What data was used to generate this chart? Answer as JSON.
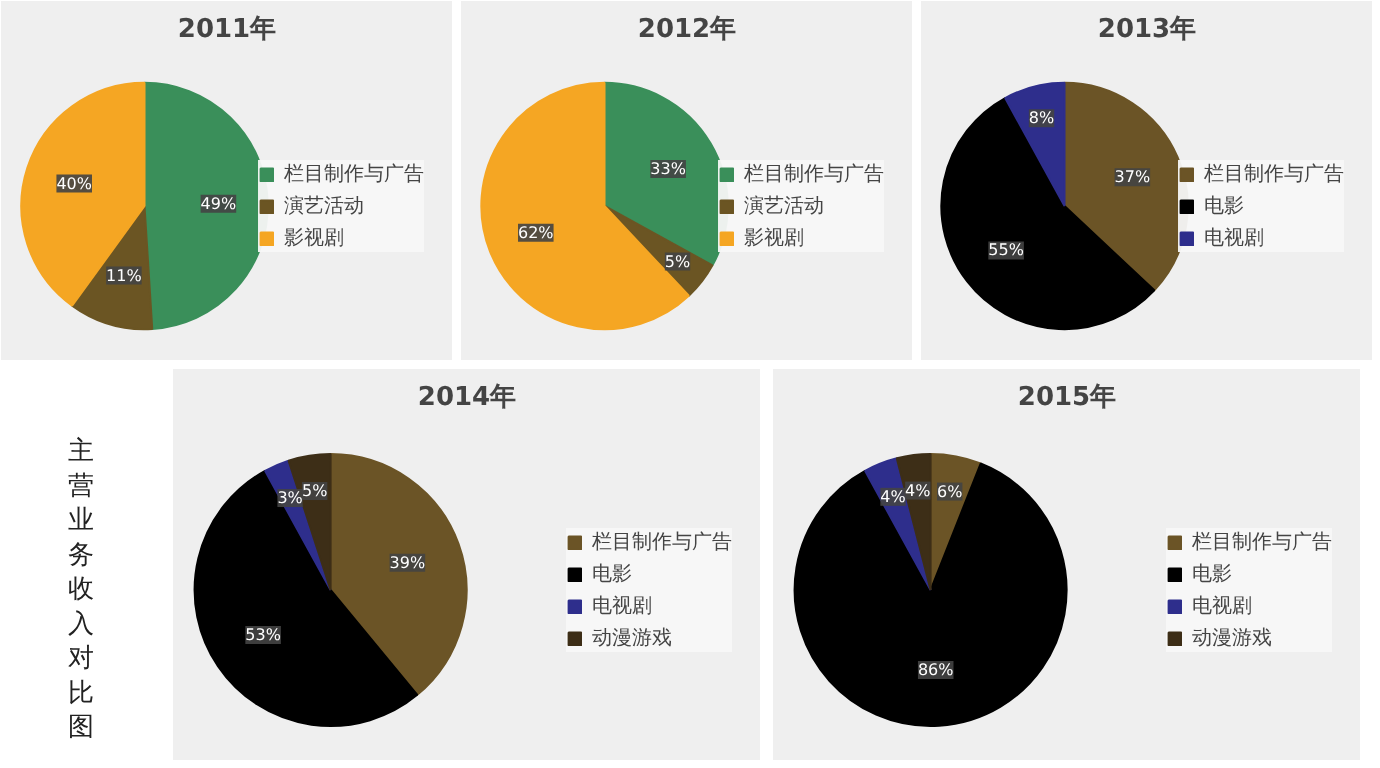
{
  "chart_data": [
    {
      "type": "pie",
      "title": "2011年",
      "categories": [
        "栏目制作与广告",
        "演艺活动",
        "影视剧"
      ],
      "values": [
        49,
        11,
        40
      ],
      "colors": [
        "#3a8f5a",
        "#6b5523",
        "#f5a623"
      ],
      "value_labels": [
        "49%",
        "11%",
        "40%"
      ],
      "legend": "right"
    },
    {
      "type": "pie",
      "title": "2012年",
      "categories": [
        "栏目制作与广告",
        "演艺活动",
        "影视剧"
      ],
      "values": [
        33,
        5,
        62
      ],
      "colors": [
        "#3a8f5a",
        "#6b5523",
        "#f5a623"
      ],
      "value_labels": [
        "33%",
        "5%",
        "62%"
      ],
      "legend": "right"
    },
    {
      "type": "pie",
      "title": "2013年",
      "categories": [
        "栏目制作与广告",
        "电影",
        "电视剧"
      ],
      "values": [
        37,
        55,
        8
      ],
      "colors": [
        "#6b5426",
        "#000000",
        "#2e2e8c"
      ],
      "value_labels": [
        "37%",
        "55%",
        "8%"
      ],
      "legend": "right"
    },
    {
      "type": "pie",
      "title": "2014年",
      "categories": [
        "栏目制作与广告",
        "电影",
        "电视剧",
        "动漫游戏"
      ],
      "values": [
        39,
        53,
        3,
        5
      ],
      "colors": [
        "#6b5426",
        "#000000",
        "#2e2e8c",
        "#3d2e17"
      ],
      "value_labels": [
        "39%",
        "53%",
        "3%",
        "5%"
      ],
      "legend": "right",
      "annotations": [
        "主营业务收入对比图"
      ]
    },
    {
      "type": "pie",
      "title": "2015年",
      "categories": [
        "栏目制作与广告",
        "电影",
        "电视剧",
        "动漫游戏"
      ],
      "values": [
        6,
        86,
        4,
        4
      ],
      "colors": [
        "#6b5426",
        "#000000",
        "#2e2e8c",
        "#3d2e17"
      ],
      "value_labels": [
        "6%",
        "86%",
        "4%",
        "4%"
      ],
      "legend": "right"
    }
  ]
}
